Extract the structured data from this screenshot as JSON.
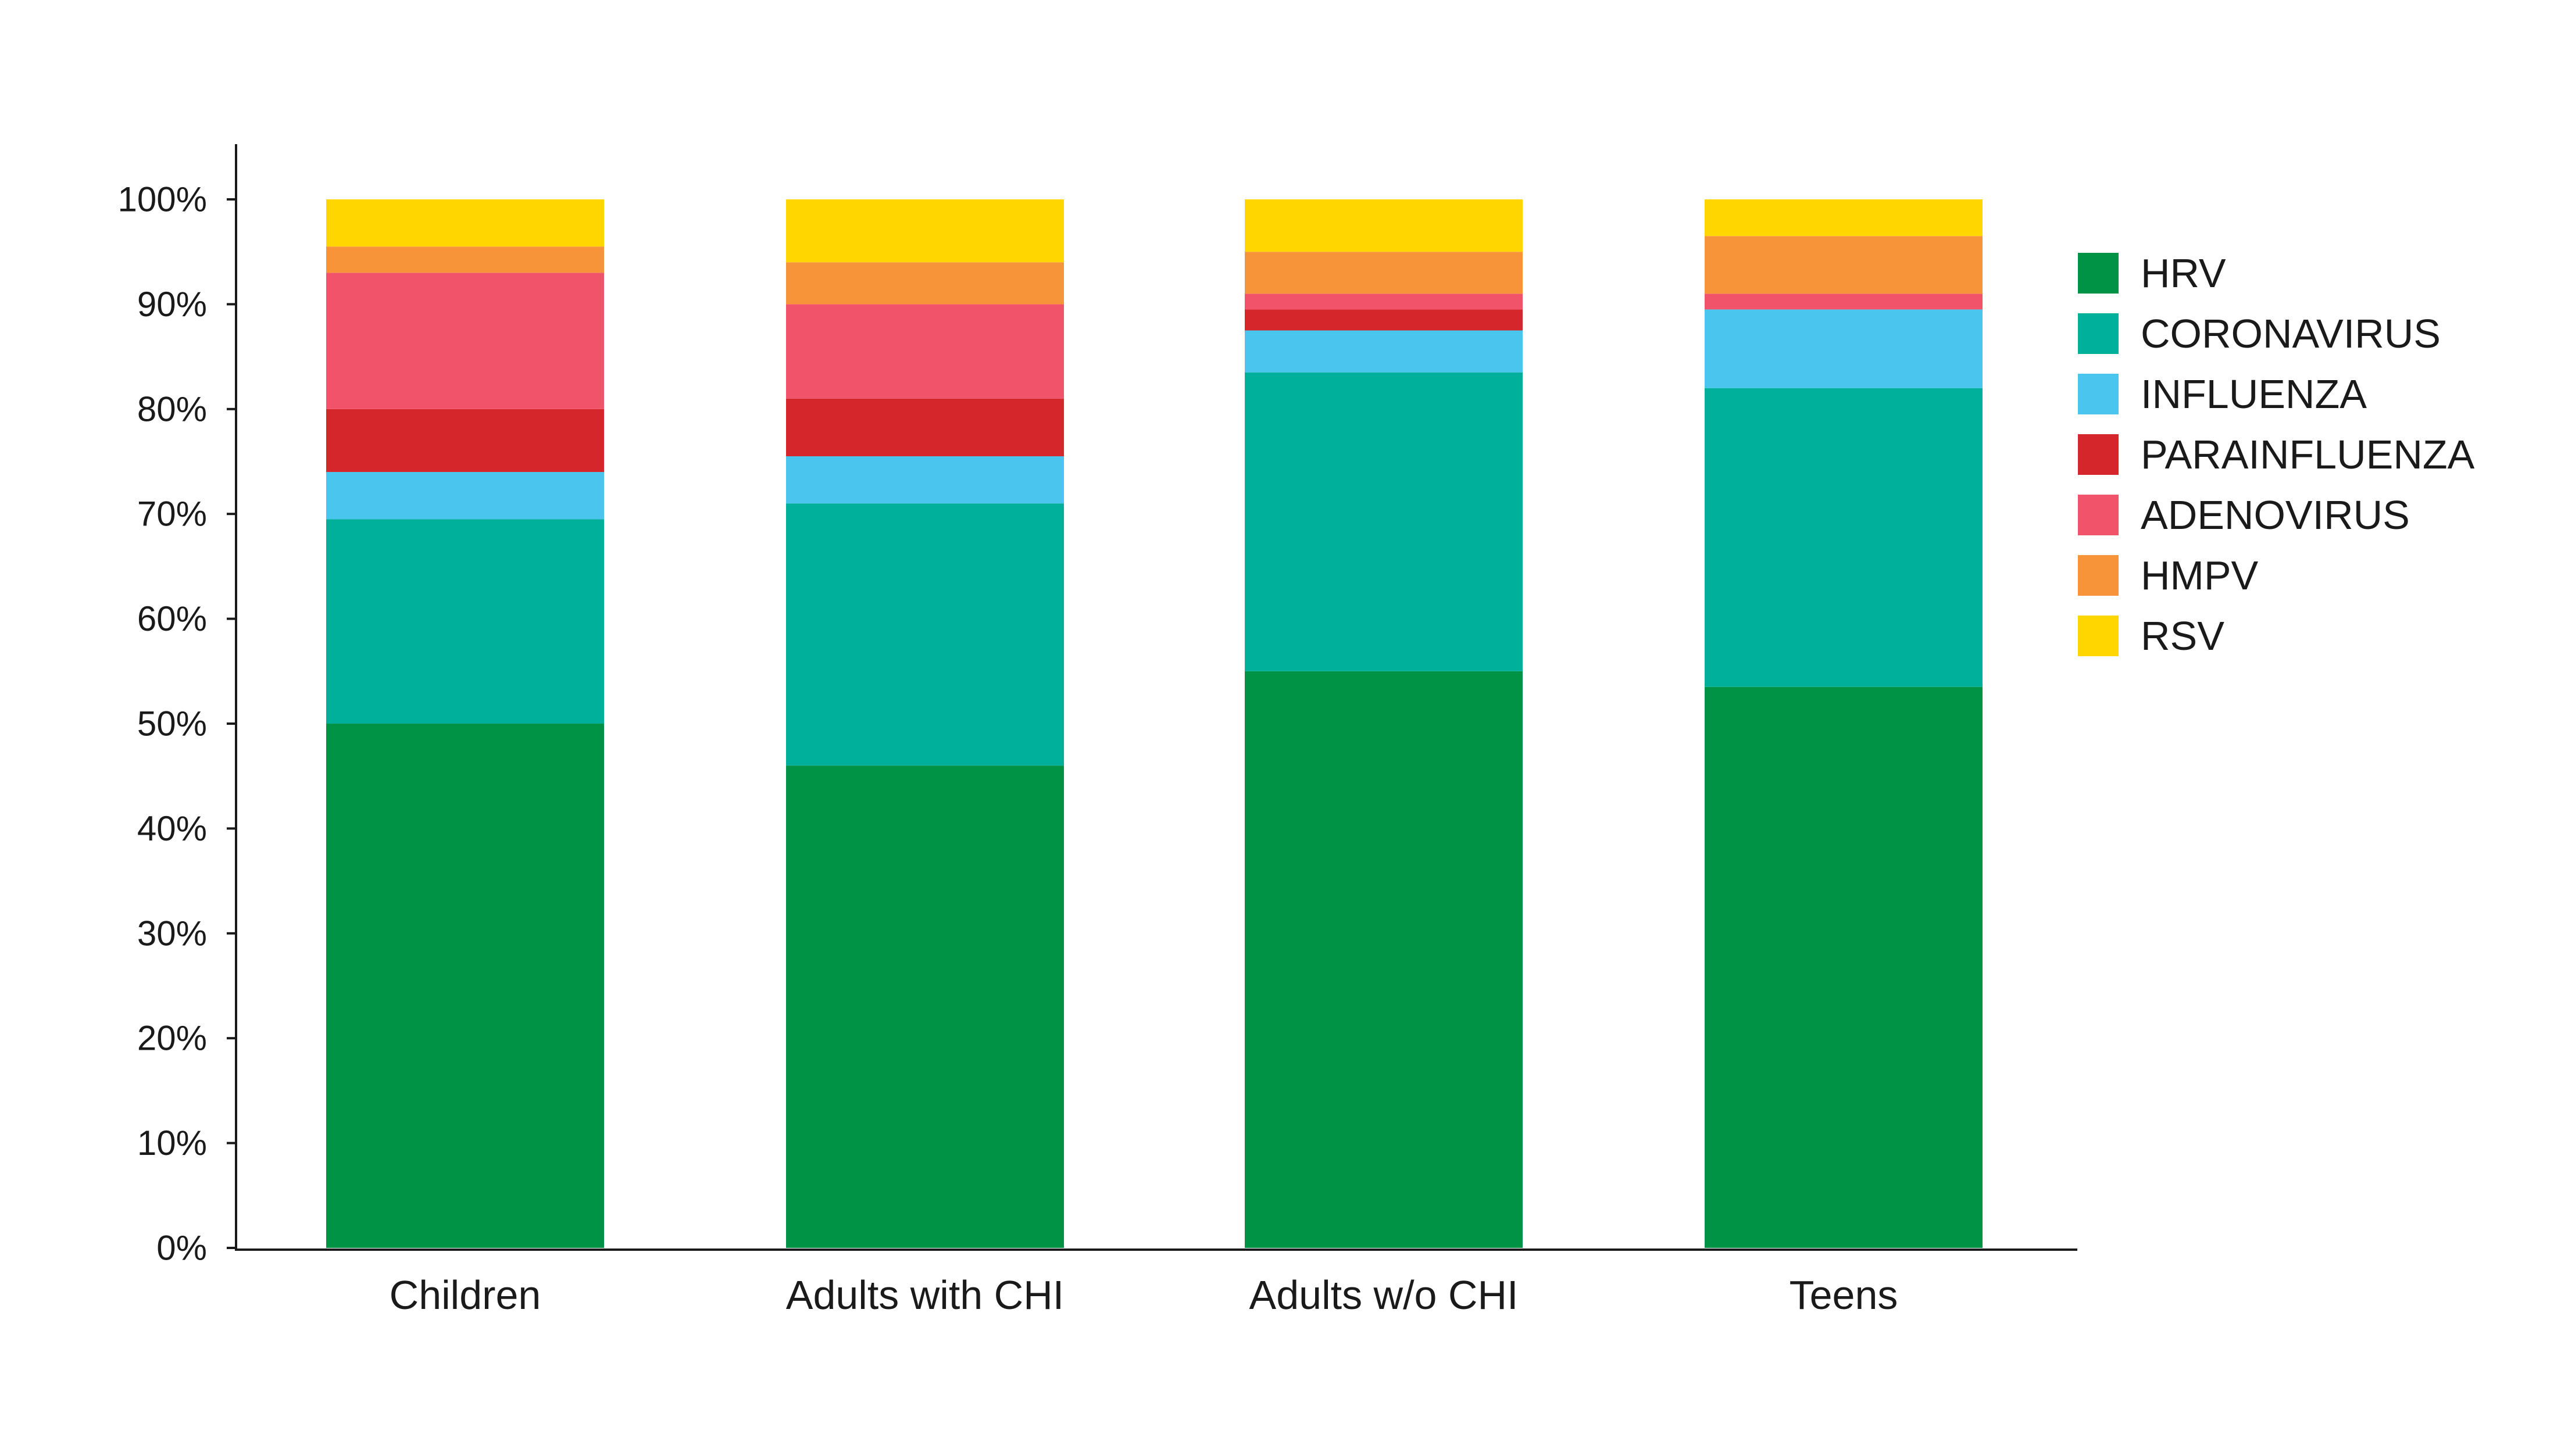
{
  "chart_data": {
    "type": "bar",
    "stacked": true,
    "title": "",
    "xlabel": "",
    "ylabel": "",
    "ylim": [
      0,
      100
    ],
    "yticks": [
      "0%",
      "10%",
      "20%",
      "30%",
      "40%",
      "50%",
      "60%",
      "70%",
      "80%",
      "90%",
      "100%"
    ],
    "categories": [
      "Children",
      "Adults with CHI",
      "Adults w/o CHI",
      "Teens"
    ],
    "series": [
      {
        "name": "HRV",
        "color": "#009245",
        "values": [
          50,
          46,
          55,
          53.5
        ]
      },
      {
        "name": "CORONAVIRUS",
        "color": "#00B09B",
        "values": [
          19.5,
          25,
          28.5,
          28.5
        ]
      },
      {
        "name": "INFLUENZA",
        "color": "#4AC6EE",
        "values": [
          4.5,
          4.5,
          4,
          7.5
        ]
      },
      {
        "name": "PARAINFLUENZA",
        "color": "#D4262B",
        "values": [
          6,
          5.5,
          2,
          0
        ]
      },
      {
        "name": "ADENOVIRUS",
        "color": "#F0536A",
        "values": [
          13,
          9,
          1.5,
          1.5
        ]
      },
      {
        "name": "HMPV",
        "color": "#F7943A",
        "values": [
          2.5,
          4,
          4,
          5.5
        ]
      },
      {
        "name": "RSV",
        "color": "#FFD600",
        "values": [
          4.5,
          6,
          5,
          3.5
        ]
      }
    ],
    "legend_position": "right",
    "grid": false
  }
}
